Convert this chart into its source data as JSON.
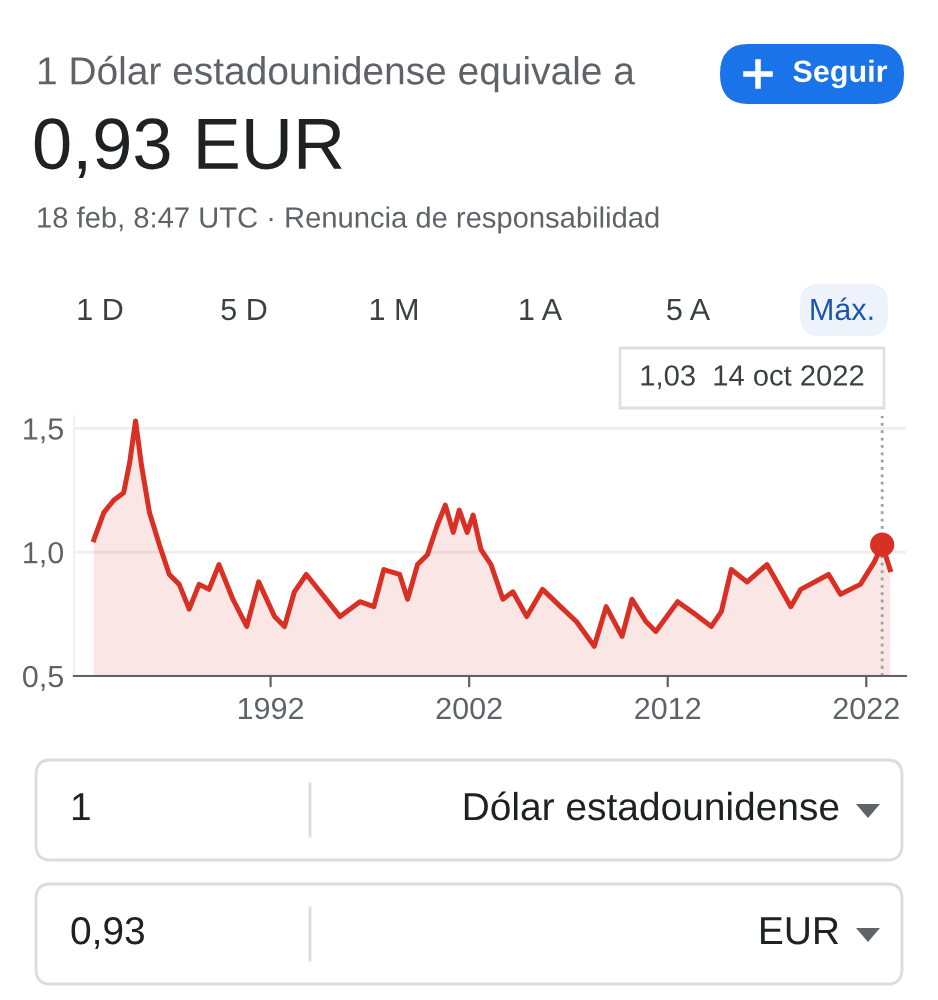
{
  "chart_data": {
    "type": "area",
    "title": "1 Dólar estadounidense equivale a",
    "subtitle": "0,93 EUR",
    "annotations": [
      "18 feb, 8:47 UTC · Renuncia de responsabilidad",
      "Seguir",
      "1 D",
      "5 D",
      "1 M",
      "1 A",
      "5 A",
      "Máx.",
      "1,03  14 oct 2022",
      "1",
      "Dólar estadounidense",
      "0,93",
      "EUR"
    ],
    "series": [
      {
        "color": "#d93025",
        "x": [
          1983.1,
          1983.6,
          1984.1,
          1984.6,
          1984.9,
          1985.2,
          1985.5,
          1985.9,
          1986.4,
          1986.9,
          1987.4,
          1987.9,
          1988.4,
          1988.9,
          1989.4,
          1990.1,
          1990.8,
          1991.4,
          1992.2,
          1992.7,
          1993.2,
          1993.8,
          1994.5,
          1995.5,
          1996.5,
          1997.2,
          1997.7,
          1998.5,
          1998.9,
          1999.4,
          1999.9,
          2000.4,
          2000.8,
          2001.2,
          2001.5,
          2001.9,
          2002.2,
          2002.6,
          2003.1,
          2003.7,
          2004.2,
          2004.9,
          2005.7,
          2006.6,
          2007.4,
          2008.3,
          2008.9,
          2009.7,
          2010.2,
          2010.9,
          2011.4,
          2012.5,
          2013.2,
          2014.2,
          2014.7,
          2015.2,
          2016.0,
          2017.0,
          2017.5,
          2018.2,
          2018.7,
          2020.1,
          2020.7,
          2021.7,
          2022.4,
          2022.8,
          2023.2
        ],
        "values": [
          1.05,
          1.16,
          1.21,
          1.24,
          1.36,
          1.53,
          1.35,
          1.16,
          1.03,
          0.91,
          0.87,
          0.77,
          0.87,
          0.85,
          0.95,
          0.81,
          0.7,
          0.88,
          0.74,
          0.7,
          0.84,
          0.91,
          0.84,
          0.74,
          0.8,
          0.78,
          0.93,
          0.91,
          0.81,
          0.95,
          0.99,
          1.11,
          1.19,
          1.08,
          1.17,
          1.08,
          1.15,
          1.01,
          0.95,
          0.81,
          0.84,
          0.74,
          0.85,
          0.78,
          0.72,
          0.62,
          0.78,
          0.66,
          0.81,
          0.72,
          0.68,
          0.8,
          0.76,
          0.7,
          0.76,
          0.93,
          0.88,
          0.95,
          0.88,
          0.78,
          0.85,
          0.91,
          0.83,
          0.87,
          0.96,
          1.03,
          0.93
        ]
      },
      {
        "type": "scatter",
        "color": "#d93025",
        "marker": "circle",
        "x": [
          2022.8
        ],
        "values": [
          1.03
        ]
      }
    ],
    "ref_lines": [
      {
        "axis": "x",
        "value": 2022.8,
        "color": "#9aa0a6",
        "line_style": "dotted"
      }
    ],
    "xlim": [
      1982.1,
      2024.0
    ],
    "xticks": [
      1992,
      2002,
      2012,
      2022
    ],
    "ylim": [
      0.5,
      1.55
    ],
    "yticks": [
      {
        "value": 0.5,
        "label": "0,5"
      },
      {
        "value": 1.0,
        "label": "1,0"
      },
      {
        "value": 1.5,
        "label": "1,5"
      }
    ],
    "grid": "y"
  }
}
